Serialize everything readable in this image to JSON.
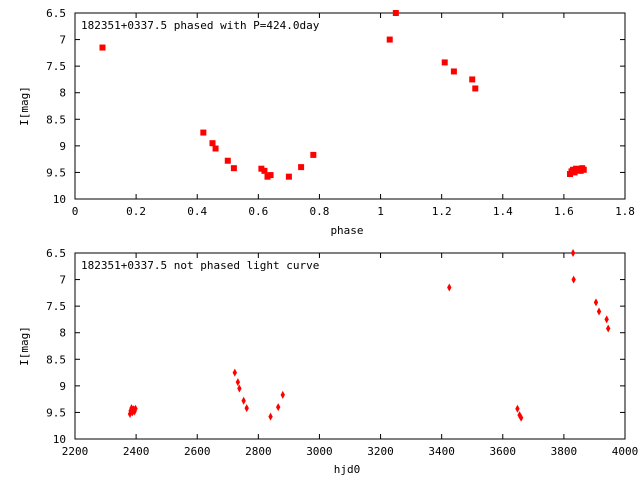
{
  "chart_data": [
    {
      "type": "scatter",
      "title": "182351+0337.5 phased with P=424.0day",
      "xlabel": "phase",
      "ylabel": "I[mag]",
      "xlim": [
        0,
        1.8
      ],
      "ylim": [
        10,
        6.5
      ],
      "y_inverted": true,
      "grid": false,
      "marker": "square",
      "marker_color": "#ff0000",
      "xticks": [
        0,
        0.2,
        0.4,
        0.6,
        0.8,
        1,
        1.2,
        1.4,
        1.6,
        1.8
      ],
      "xtick_labels": [
        "0",
        "0.2",
        "0.4",
        "0.6",
        "0.8",
        "1",
        "1.2",
        "1.4",
        "1.6",
        "1.8"
      ],
      "yticks": [
        6.5,
        7,
        7.5,
        8,
        8.5,
        9,
        9.5,
        10
      ],
      "ytick_labels": [
        "6.5",
        "7",
        "7.5",
        "8",
        "8.5",
        "9",
        "9.5",
        "10"
      ],
      "series": [
        {
          "x": [
            0.09,
            0.42,
            0.45,
            0.46,
            0.5,
            0.52,
            0.61,
            0.62,
            0.63,
            0.64,
            0.7,
            0.74,
            0.78,
            1.03,
            1.05,
            1.21,
            1.24,
            1.3,
            1.31,
            1.62,
            1.625,
            1.63,
            1.635,
            1.64,
            1.645,
            1.65,
            1.655,
            1.66,
            1.665
          ],
          "y": [
            7.15,
            8.75,
            8.95,
            9.05,
            9.28,
            9.42,
            9.43,
            9.47,
            9.58,
            9.55,
            9.58,
            9.4,
            9.17,
            7.0,
            6.5,
            7.43,
            7.6,
            7.75,
            7.92,
            9.53,
            9.48,
            9.45,
            9.5,
            9.43,
            9.46,
            9.44,
            9.47,
            9.42,
            9.45
          ]
        }
      ]
    },
    {
      "type": "scatter",
      "title": "182351+0337.5 not phased light curve",
      "xlabel": "hjd0",
      "ylabel": "I[mag]",
      "xlim": [
        2200,
        4000
      ],
      "ylim": [
        10,
        6.5
      ],
      "y_inverted": true,
      "grid": false,
      "marker": "diamond",
      "marker_color": "#ff0000",
      "xticks": [
        2200,
        2400,
        2600,
        2800,
        3000,
        3200,
        3400,
        3600,
        3800,
        4000
      ],
      "xtick_labels": [
        "2200",
        "2400",
        "2600",
        "2800",
        "3000",
        "3200",
        "3400",
        "3600",
        "3800",
        "4000"
      ],
      "yticks": [
        6.5,
        7,
        7.5,
        8,
        8.5,
        9,
        9.5,
        10
      ],
      "ytick_labels": [
        "6.5",
        "7",
        "7.5",
        "8",
        "8.5",
        "9",
        "9.5",
        "10"
      ],
      "series": [
        {
          "x": [
            2380,
            2382,
            2385,
            2388,
            2390,
            2392,
            2395,
            2398,
            2723,
            2733,
            2738,
            2752,
            2762,
            2840,
            2865,
            2880,
            3425,
            3648,
            3655,
            3660,
            3830,
            3832,
            3905,
            3915,
            3940,
            3945
          ],
          "y": [
            9.53,
            9.47,
            9.42,
            9.5,
            9.45,
            9.44,
            9.48,
            9.43,
            8.75,
            8.93,
            9.05,
            9.28,
            9.42,
            9.58,
            9.4,
            9.17,
            7.15,
            9.43,
            9.55,
            9.6,
            6.5,
            7.0,
            7.43,
            7.6,
            7.75,
            7.92
          ]
        }
      ]
    }
  ]
}
